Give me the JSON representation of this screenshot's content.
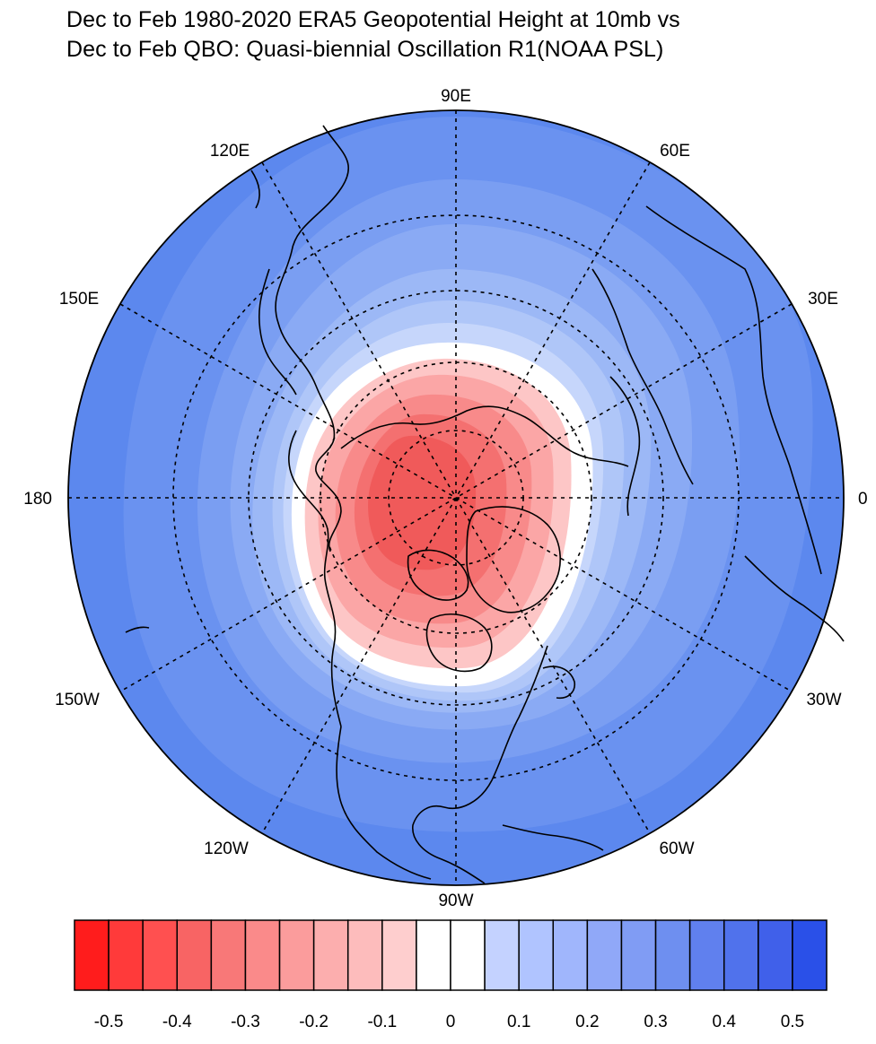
{
  "title": {
    "line1": "Dec to Feb 1980-2020 ERA5 Geopotential Height at 10mb vs",
    "line2": "Dec to Feb QBO: Quasi-biennial Oscillation R1(NOAA PSL)"
  },
  "map": {
    "projection": "north-polar-stereographic",
    "longitude_labels": [
      "90E",
      "60E",
      "30E",
      "0",
      "30W",
      "60W",
      "90W",
      "120W",
      "150W",
      "180",
      "150E",
      "120E"
    ],
    "colors": {
      "background_blue": "#5c88ee",
      "positive_core": "#f04848",
      "zero_band": "#ffffff"
    }
  },
  "colorbar": {
    "tick_labels": [
      "-0.5",
      "-0.4",
      "-0.3",
      "-0.2",
      "-0.1",
      "0",
      "0.1",
      "0.2",
      "0.3",
      "0.4",
      "0.5"
    ],
    "colors": [
      "#ff1c1c",
      "#ff3a3a",
      "#ff5050",
      "#f86464",
      "#f87878",
      "#fa8a8a",
      "#fb9c9c",
      "#fcaeae",
      "#fdbcbc",
      "#fecece",
      "#ffffff",
      "#ffffff",
      "#c4d2ff",
      "#b0c4ff",
      "#a0b6fc",
      "#90a8f8",
      "#809cf4",
      "#6e8ff0",
      "#6080ee",
      "#5072ec",
      "#4060ea",
      "#2a50e8"
    ]
  }
}
